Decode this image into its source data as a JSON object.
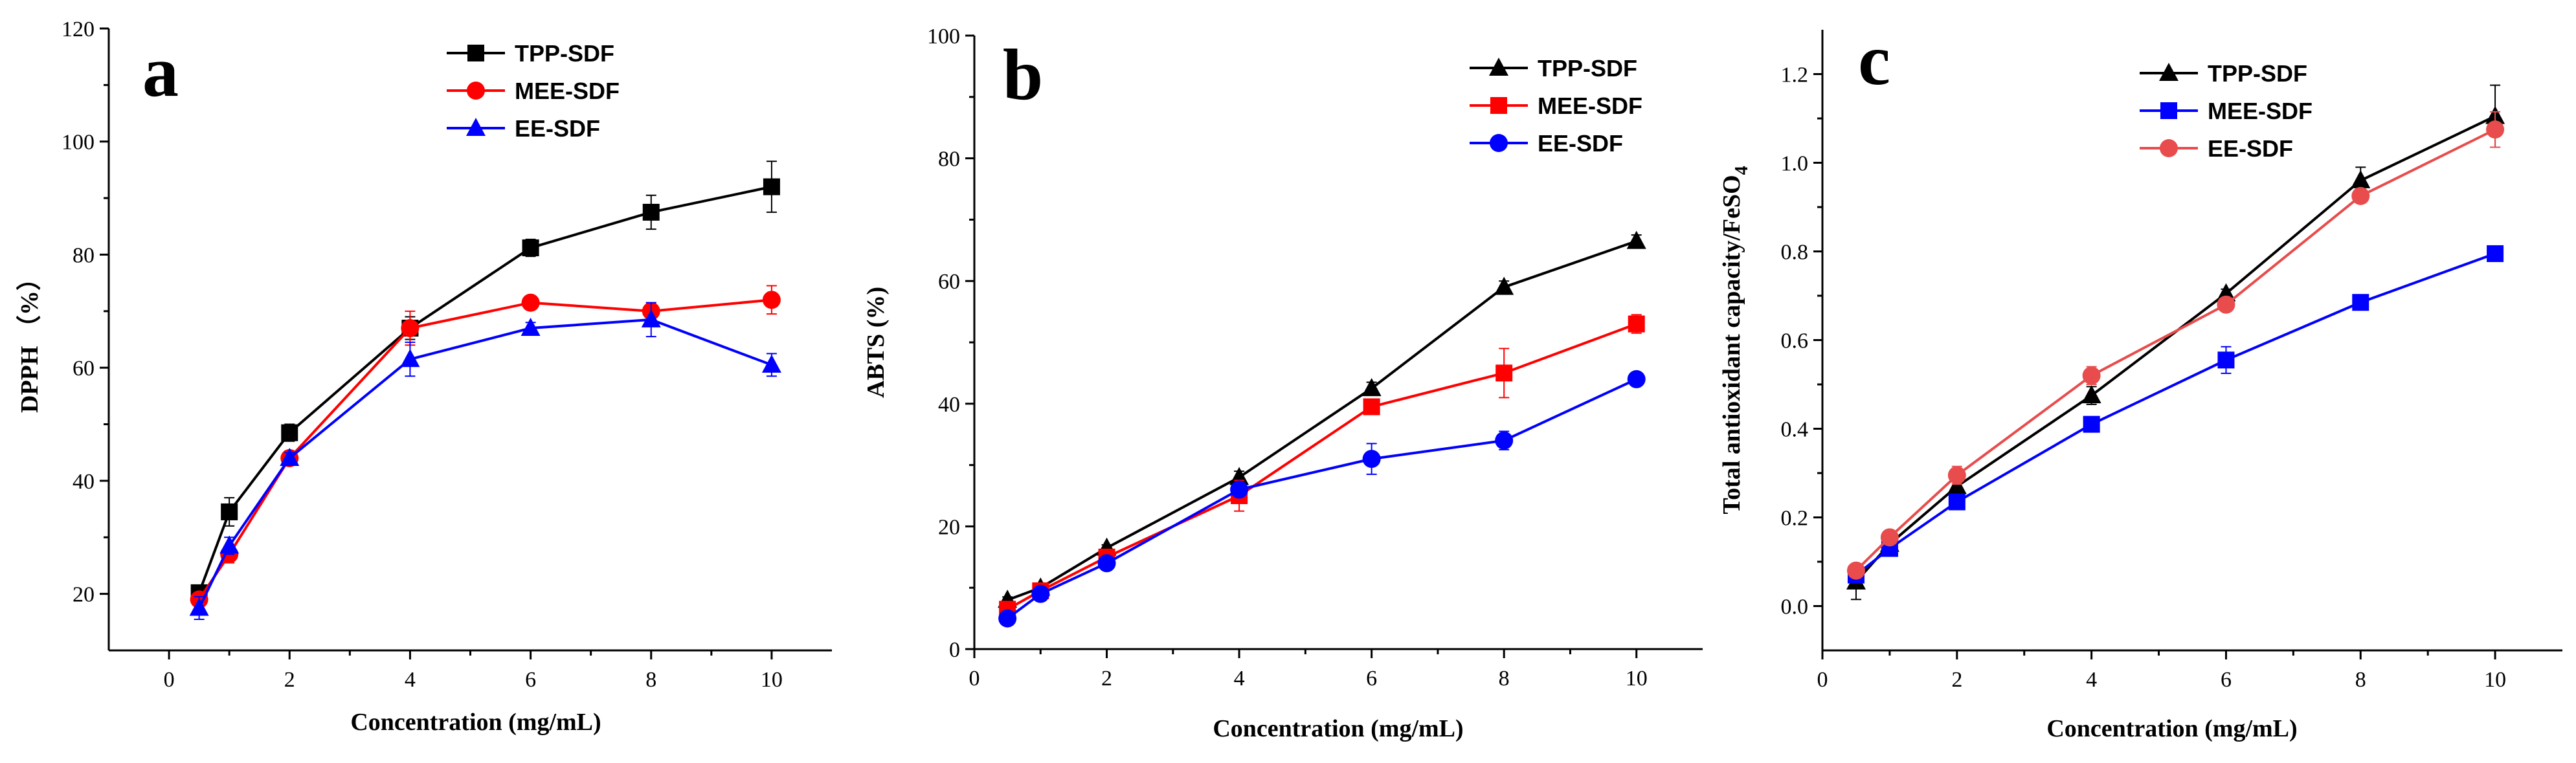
{
  "chart_data": [
    {
      "type": "line",
      "panel_label": "a",
      "title": "",
      "xlabel": "Concentration (mg/mL)",
      "ylabel": "DPPH （%）",
      "xlim": [
        -1,
        11
      ],
      "ylim": [
        10,
        120
      ],
      "xticks": [
        0,
        2,
        4,
        6,
        8,
        10
      ],
      "yticks": [
        20,
        40,
        60,
        80,
        100,
        120
      ],
      "x": [
        0.5,
        1,
        2,
        4,
        6,
        8,
        10
      ],
      "legend_position": "top-center",
      "series": [
        {
          "name": "TPP-SDF",
          "color": "#000000",
          "marker": "square",
          "values": [
            20.2,
            34.5,
            48.5,
            67.0,
            81.2,
            87.5,
            92.0
          ],
          "errors": [
            1.0,
            2.5,
            1.5,
            2.0,
            1.5,
            3.0,
            4.5
          ]
        },
        {
          "name": "MEE-SDF",
          "color": "#ff0000",
          "marker": "circle",
          "values": [
            19.0,
            27.0,
            44.0,
            67.0,
            71.5,
            70.0,
            72.0
          ],
          "errors": [
            1.0,
            1.5,
            1.0,
            3.0,
            1.0,
            1.5,
            2.5
          ]
        },
        {
          "name": "EE-SDF",
          "color": "#0000ff",
          "marker": "triangle",
          "values": [
            17.5,
            28.5,
            44.0,
            61.5,
            67.0,
            68.5,
            60.5
          ],
          "errors": [
            2.0,
            1.5,
            1.0,
            3.0,
            1.0,
            3.0,
            2.0
          ]
        }
      ]
    },
    {
      "type": "line",
      "panel_label": "b",
      "title": "",
      "xlabel": "Concentration (mg/mL)",
      "ylabel": "ABTS (%)",
      "xlim": [
        0,
        11
      ],
      "ylim": [
        0,
        100
      ],
      "xticks": [
        0,
        2,
        4,
        6,
        8,
        10
      ],
      "yticks": [
        0,
        20,
        40,
        60,
        80,
        100
      ],
      "x": [
        0.5,
        1,
        2,
        4,
        6,
        8,
        10
      ],
      "legend_position": "top-center",
      "series": [
        {
          "name": "TPP-SDF",
          "color": "#000000",
          "marker": "triangle",
          "values": [
            8.0,
            10.0,
            16.5,
            28.0,
            42.5,
            59.0,
            66.5
          ],
          "errors": [
            0.5,
            0.5,
            0.5,
            1.0,
            1.0,
            1.0,
            1.0
          ]
        },
        {
          "name": "MEE-SDF",
          "color": "#ff0000",
          "marker": "square",
          "values": [
            6.5,
            9.5,
            15.0,
            25.0,
            39.5,
            45.0,
            53.0
          ],
          "errors": [
            0.5,
            0.5,
            0.5,
            2.5,
            1.0,
            4.0,
            1.5
          ]
        },
        {
          "name": "EE-SDF",
          "color": "#0000ff",
          "marker": "circle",
          "values": [
            5.0,
            9.0,
            14.0,
            26.0,
            31.0,
            34.0,
            44.0
          ],
          "errors": [
            0.5,
            0.5,
            0.5,
            1.0,
            2.5,
            1.5,
            0.5
          ]
        }
      ]
    },
    {
      "type": "line",
      "panel_label": "c",
      "title": "",
      "xlabel": "Concentration (mg/mL)",
      "ylabel": "Total antioxidant capacity/FeSO",
      "ylabel_subscript": "4",
      "xlim": [
        0,
        11
      ],
      "ylim": [
        -0.1,
        1.3
      ],
      "xticks": [
        0,
        2,
        4,
        6,
        8,
        10
      ],
      "yticks": [
        "0.0",
        "0.2",
        "0.4",
        "0.6",
        "0.8",
        "1.0",
        "1.2"
      ],
      "x": [
        0.5,
        1,
        2,
        4,
        6,
        8,
        10
      ],
      "legend_position": "top-center",
      "series": [
        {
          "name": "TPP-SDF",
          "color": "#000000",
          "marker": "triangle",
          "values": [
            0.055,
            0.14,
            0.27,
            0.475,
            0.705,
            0.96,
            1.105
          ],
          "errors": [
            0.04,
            0.01,
            0.01,
            0.02,
            0.01,
            0.03,
            0.07
          ]
        },
        {
          "name": "MEE-SDF",
          "color": "#0000ff",
          "marker": "square",
          "values": [
            0.07,
            0.13,
            0.235,
            0.41,
            0.555,
            0.685,
            0.795
          ],
          "errors": [
            0.01,
            0.01,
            0.01,
            0.01,
            0.03,
            0.01,
            0.01
          ]
        },
        {
          "name": "EE-SDF",
          "color": "#e84c4c",
          "marker": "circle",
          "values": [
            0.08,
            0.155,
            0.295,
            0.52,
            0.68,
            0.925,
            1.075
          ],
          "errors": [
            0.01,
            0.01,
            0.02,
            0.02,
            0.01,
            0.01,
            0.04
          ]
        }
      ]
    }
  ]
}
